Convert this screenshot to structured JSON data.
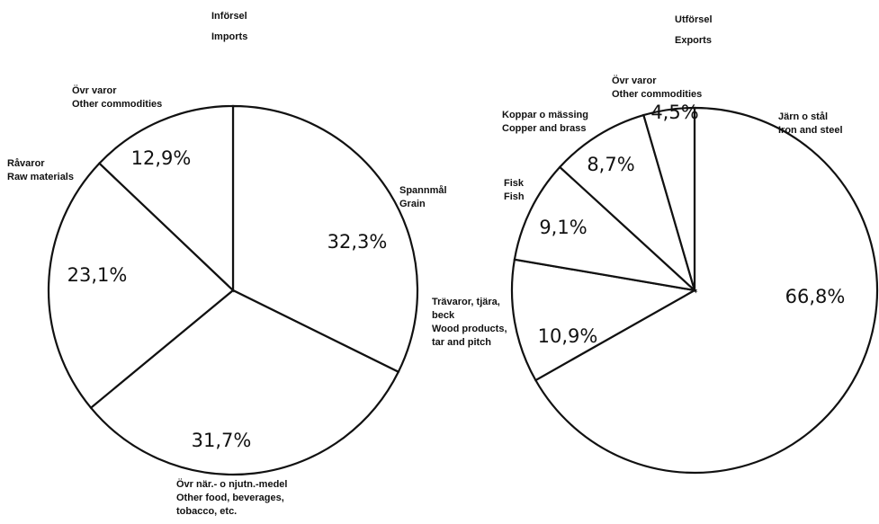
{
  "chart_data": [
    {
      "type": "pie",
      "title": "Införsel",
      "subtitle": "Imports",
      "slices": [
        {
          "label_sv": "Spannmål",
          "label_en": "Grain",
          "value": 32.3,
          "display": "32,3%"
        },
        {
          "label_sv": "Övr när.- o njutn.-medel",
          "label_en": "Other food, beverages, tobacco, etc.",
          "value": 31.7,
          "display": "31,7%"
        },
        {
          "label_sv": "Råvaror",
          "label_en": "Raw materials",
          "value": 23.1,
          "display": "23,1%"
        },
        {
          "label_sv": "Övr varor",
          "label_en": "Other commodities",
          "value": 12.9,
          "display": "12,9%"
        }
      ]
    },
    {
      "type": "pie",
      "title": "Utförsel",
      "subtitle": "Exports",
      "slices": [
        {
          "label_sv": "Järn o stål",
          "label_en": "Iron and steel",
          "value": 66.8,
          "display": "66,8%"
        },
        {
          "label_sv": "Trävaror, tjära, beck",
          "label_en": "Wood products, tar and pitch",
          "value": 10.9,
          "display": "10,9%"
        },
        {
          "label_sv": "Fisk",
          "label_en": "Fish",
          "value": 9.1,
          "display": "9,1%"
        },
        {
          "label_sv": "Koppar o mässing",
          "label_en": "Copper and brass",
          "value": 8.7,
          "display": "8,7%"
        },
        {
          "label_sv": "Övr varor",
          "label_en": "Other commodities",
          "value": 4.5,
          "display": "4,5%"
        }
      ]
    }
  ],
  "labels": {
    "imports_title": "Införsel",
    "imports_subtitle": "Imports",
    "exports_title": "Utförsel",
    "exports_subtitle": "Exports",
    "imp_grain_sv": "Spannmål",
    "imp_grain_en": "Grain",
    "imp_food_sv": "Övr när.- o njutn.-medel",
    "imp_food_en1": "Other food, beverages,",
    "imp_food_en2": "tobacco, etc.",
    "imp_raw_sv": "Råvaror",
    "imp_raw_en": "Raw materials",
    "imp_other_sv": "Övr varor",
    "imp_other_en": "Other commodities",
    "exp_iron_sv": "Järn o stål",
    "exp_iron_en": "Iron and steel",
    "exp_wood_sv1": "Trävaror, tjära,",
    "exp_wood_sv2": "beck",
    "exp_wood_en1": "Wood products,",
    "exp_wood_en2": "tar and pitch",
    "exp_fish_sv": "Fisk",
    "exp_fish_en": "Fish",
    "exp_copper_sv": "Koppar o mässing",
    "exp_copper_en": "Copper and brass",
    "exp_other_sv": "Övr varor",
    "exp_other_en": "Other commodities"
  }
}
